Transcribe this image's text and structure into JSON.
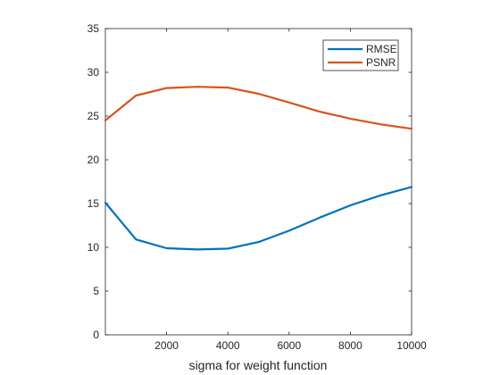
{
  "chart_data": {
    "type": "line",
    "title": "",
    "xlabel": "sigma for weight function",
    "ylabel": "",
    "xlim": [
      0,
      10000
    ],
    "ylim": [
      0,
      35
    ],
    "xticks": [
      2000,
      4000,
      6000,
      8000,
      10000
    ],
    "yticks": [
      0,
      5,
      10,
      15,
      20,
      25,
      30,
      35
    ],
    "grid": false,
    "legend_position": "top-right",
    "series": [
      {
        "name": "RMSE",
        "color": "#0072BD",
        "x": [
          0,
          1000,
          2000,
          3000,
          4000,
          5000,
          6000,
          7000,
          8000,
          9000,
          10000
        ],
        "y": [
          15.1,
          10.9,
          9.9,
          9.75,
          9.85,
          10.6,
          11.9,
          13.4,
          14.8,
          15.95,
          16.9
        ]
      },
      {
        "name": "PSNR",
        "color": "#D95319",
        "x": [
          0,
          1000,
          2000,
          3000,
          4000,
          5000,
          6000,
          7000,
          8000,
          9000,
          10000
        ],
        "y": [
          24.5,
          27.35,
          28.2,
          28.35,
          28.25,
          27.55,
          26.55,
          25.5,
          24.7,
          24.05,
          23.55
        ]
      }
    ]
  }
}
